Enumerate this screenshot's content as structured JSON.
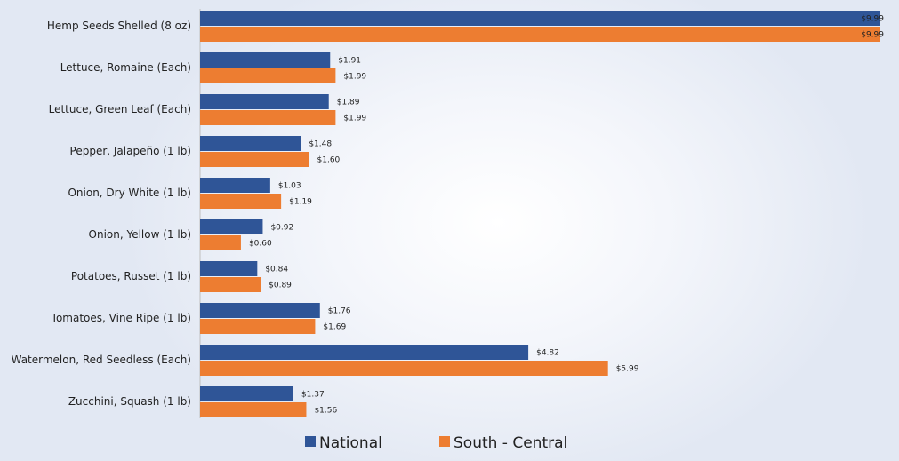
{
  "chart_data": {
    "type": "bar",
    "orientation": "horizontal",
    "title": "",
    "xlabel": "",
    "ylabel": "",
    "xlim": [
      0,
      9.99
    ],
    "grid": false,
    "legend_position": "bottom",
    "value_prefix": "$",
    "categories": [
      "Hemp Seeds Shelled (8 oz)",
      "Lettuce, Romaine (Each)",
      "Lettuce, Green Leaf (Each)",
      "Pepper, Jalapeño (1 lb)",
      "Onion, Dry White (1 lb)",
      "Onion, Yellow (1 lb)",
      "Potatoes, Russet (1 lb)",
      "Tomatoes, Vine Ripe (1 lb)",
      "Watermelon, Red Seedless (Each)",
      "Zucchini, Squash (1 lb)"
    ],
    "series": [
      {
        "name": "National",
        "color": "#2f5597",
        "values": [
          9.99,
          1.91,
          1.89,
          1.48,
          1.03,
          0.92,
          0.84,
          1.76,
          4.82,
          1.37
        ],
        "labels": [
          "$9.99",
          "$1.91",
          "$1.89",
          "$1.48",
          "$1.03",
          "$0.92",
          "$0.84",
          "$1.76",
          "$4.82",
          "$1.37"
        ]
      },
      {
        "name": "South - Central",
        "color": "#ed7d31",
        "values": [
          9.99,
          1.99,
          1.99,
          1.6,
          1.19,
          0.6,
          0.89,
          1.69,
          5.99,
          1.56
        ],
        "labels": [
          "$9.99",
          "$1.99",
          "$1.99",
          "$1.60",
          "$1.19",
          "$0.60",
          "$0.89",
          "$1.69",
          "$5.99",
          "$1.56"
        ]
      }
    ]
  }
}
